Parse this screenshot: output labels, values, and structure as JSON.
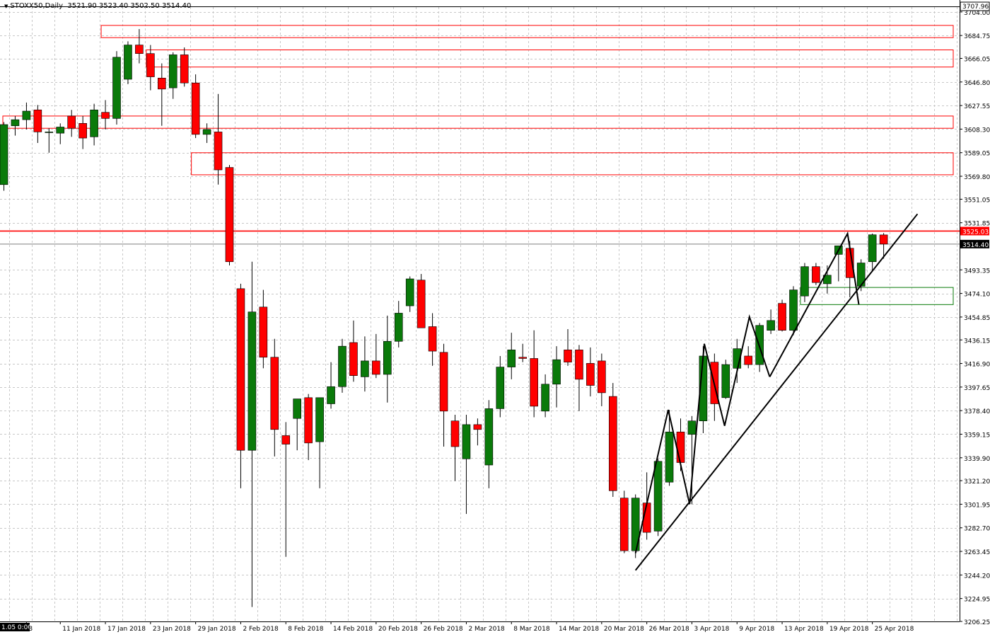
{
  "header": {
    "symbol": "STOXX50,Daily",
    "ohlc": "3521.90 3523.40 3502.50 3514.40",
    "dropdown_icon": "triangle-down-icon"
  },
  "colors": {
    "background": "#ffffff",
    "grid": "#c8c8c8",
    "bull": "#0a7a0a",
    "bear": "#ff0000",
    "wick": "#000000",
    "resistance_zone": "#ff0000",
    "support_zone": "#0a7a0a",
    "trendline": "#000000",
    "price_line": "#ff0000",
    "current_label_bg": "#000000"
  },
  "chart_data": {
    "type": "candlestick",
    "title": "STOXX50,Daily",
    "ylim": [
      3206.25,
      3707.96
    ],
    "yticks": [
      "3704.00",
      "3684.75",
      "3666.05",
      "3646.80",
      "3627.55",
      "3608.30",
      "3589.05",
      "3569.80",
      "3551.05",
      "3531.85",
      "3493.35",
      "3474.10",
      "3454.85",
      "3436.15",
      "3416.90",
      "3397.65",
      "3378.40",
      "3359.15",
      "3339.90",
      "3321.20",
      "3301.95",
      "3282.70",
      "3263.45",
      "3244.20",
      "3224.95",
      "3206.25"
    ],
    "top_label": "3707.96",
    "x_axis_labels": [
      {
        "text": "1.05 0:00",
        "index": 0,
        "highlight": true
      },
      {
        "text": "8",
        "index": 2
      },
      {
        "text": "11 Jan 2018",
        "index": 5
      },
      {
        "text": "17 Jan 2018",
        "index": 9
      },
      {
        "text": "23 Jan 2018",
        "index": 13
      },
      {
        "text": "29 Jan 2018",
        "index": 17
      },
      {
        "text": "2 Feb 2018",
        "index": 21
      },
      {
        "text": "8 Feb 2018",
        "index": 25
      },
      {
        "text": "14 Feb 2018",
        "index": 29
      },
      {
        "text": "20 Feb 2018",
        "index": 33
      },
      {
        "text": "26 Feb 2018",
        "index": 37
      },
      {
        "text": "2 Mar 2018",
        "index": 41
      },
      {
        "text": "8 Mar 2018",
        "index": 45
      },
      {
        "text": "14 Mar 2018",
        "index": 49
      },
      {
        "text": "20 Mar 2018",
        "index": 53
      },
      {
        "text": "26 Mar 2018",
        "index": 57
      },
      {
        "text": "3 Apr 2018",
        "index": 61
      },
      {
        "text": "9 Apr 2018",
        "index": 65
      },
      {
        "text": "13 Apr 2018",
        "index": 69
      },
      {
        "text": "19 Apr 2018",
        "index": 73
      },
      {
        "text": "25 Apr 2018",
        "index": 77
      }
    ],
    "candles": [
      {
        "o": 3563,
        "h": 3614,
        "l": 3558,
        "c": 3612
      },
      {
        "o": 3611,
        "h": 3619,
        "l": 3603,
        "c": 3616
      },
      {
        "o": 3616,
        "h": 3630,
        "l": 3608,
        "c": 3623
      },
      {
        "o": 3624,
        "h": 3628,
        "l": 3597,
        "c": 3606
      },
      {
        "o": 3606,
        "h": 3609,
        "l": 3589,
        "c": 3606
      },
      {
        "o": 3605,
        "h": 3613,
        "l": 3596,
        "c": 3610
      },
      {
        "o": 3619,
        "h": 3624,
        "l": 3602,
        "c": 3609
      },
      {
        "o": 3613,
        "h": 3619,
        "l": 3592,
        "c": 3601
      },
      {
        "o": 3602,
        "h": 3629,
        "l": 3595,
        "c": 3624
      },
      {
        "o": 3622,
        "h": 3632,
        "l": 3608,
        "c": 3617
      },
      {
        "o": 3617,
        "h": 3672,
        "l": 3612,
        "c": 3667
      },
      {
        "o": 3649,
        "h": 3680,
        "l": 3645,
        "c": 3677
      },
      {
        "o": 3677,
        "h": 3690,
        "l": 3662,
        "c": 3670
      },
      {
        "o": 3670,
        "h": 3677,
        "l": 3640,
        "c": 3651
      },
      {
        "o": 3650,
        "h": 3662,
        "l": 3611,
        "c": 3641
      },
      {
        "o": 3642,
        "h": 3671,
        "l": 3633,
        "c": 3669
      },
      {
        "o": 3669,
        "h": 3675,
        "l": 3643,
        "c": 3646
      },
      {
        "o": 3646,
        "h": 3653,
        "l": 3601,
        "c": 3604
      },
      {
        "o": 3604,
        "h": 3613,
        "l": 3597,
        "c": 3608
      },
      {
        "o": 3606,
        "h": 3637,
        "l": 3563,
        "c": 3575
      },
      {
        "o": 3577,
        "h": 3579,
        "l": 3497,
        "c": 3500
      },
      {
        "o": 3478,
        "h": 3482,
        "l": 3315,
        "c": 3346
      },
      {
        "o": 3346,
        "h": 3500,
        "l": 3218,
        "c": 3459
      },
      {
        "o": 3463,
        "h": 3477,
        "l": 3413,
        "c": 3422
      },
      {
        "o": 3422,
        "h": 3437,
        "l": 3341,
        "c": 3363
      },
      {
        "o": 3358,
        "h": 3369,
        "l": 3259,
        "c": 3351
      },
      {
        "o": 3372,
        "h": 3388,
        "l": 3346,
        "c": 3388
      },
      {
        "o": 3389,
        "h": 3392,
        "l": 3338,
        "c": 3352
      },
      {
        "o": 3353,
        "h": 3389,
        "l": 3315,
        "c": 3389
      },
      {
        "o": 3384,
        "h": 3418,
        "l": 3380,
        "c": 3398
      },
      {
        "o": 3398,
        "h": 3437,
        "l": 3393,
        "c": 3431
      },
      {
        "o": 3434,
        "h": 3452,
        "l": 3402,
        "c": 3407
      },
      {
        "o": 3406,
        "h": 3439,
        "l": 3394,
        "c": 3419
      },
      {
        "o": 3419,
        "h": 3441,
        "l": 3405,
        "c": 3408
      },
      {
        "o": 3408,
        "h": 3456,
        "l": 3385,
        "c": 3435
      },
      {
        "o": 3435,
        "h": 3468,
        "l": 3430,
        "c": 3458
      },
      {
        "o": 3464,
        "h": 3488,
        "l": 3459,
        "c": 3486
      },
      {
        "o": 3485,
        "h": 3490,
        "l": 3446,
        "c": 3446
      },
      {
        "o": 3447,
        "h": 3458,
        "l": 3415,
        "c": 3427
      },
      {
        "o": 3426,
        "h": 3433,
        "l": 3349,
        "c": 3378
      },
      {
        "o": 3370,
        "h": 3375,
        "l": 3321,
        "c": 3349
      },
      {
        "o": 3339,
        "h": 3375,
        "l": 3294,
        "c": 3367
      },
      {
        "o": 3367,
        "h": 3372,
        "l": 3350,
        "c": 3363
      },
      {
        "o": 3334,
        "h": 3387,
        "l": 3315,
        "c": 3380
      },
      {
        "o": 3380,
        "h": 3423,
        "l": 3373,
        "c": 3414
      },
      {
        "o": 3414,
        "h": 3442,
        "l": 3404,
        "c": 3428
      },
      {
        "o": 3422,
        "h": 3433,
        "l": 3418,
        "c": 3421
      },
      {
        "o": 3421,
        "h": 3444,
        "l": 3373,
        "c": 3382
      },
      {
        "o": 3378,
        "h": 3408,
        "l": 3373,
        "c": 3400
      },
      {
        "o": 3400,
        "h": 3431,
        "l": 3381,
        "c": 3420
      },
      {
        "o": 3428,
        "h": 3445,
        "l": 3415,
        "c": 3418
      },
      {
        "o": 3428,
        "h": 3432,
        "l": 3378,
        "c": 3404
      },
      {
        "o": 3417,
        "h": 3430,
        "l": 3390,
        "c": 3399
      },
      {
        "o": 3419,
        "h": 3425,
        "l": 3382,
        "c": 3393
      },
      {
        "o": 3390,
        "h": 3401,
        "l": 3308,
        "c": 3313
      },
      {
        "o": 3307,
        "h": 3313,
        "l": 3262,
        "c": 3264
      },
      {
        "o": 3264,
        "h": 3310,
        "l": 3258,
        "c": 3307
      },
      {
        "o": 3303,
        "h": 3328,
        "l": 3273,
        "c": 3279
      },
      {
        "o": 3280,
        "h": 3339,
        "l": 3276,
        "c": 3337
      },
      {
        "o": 3320,
        "h": 3379,
        "l": 3317,
        "c": 3361
      },
      {
        "o": 3361,
        "h": 3372,
        "l": 3329,
        "c": 3336
      },
      {
        "o": 3359,
        "h": 3374,
        "l": 3302,
        "c": 3370
      },
      {
        "o": 3370,
        "h": 3431,
        "l": 3360,
        "c": 3423
      },
      {
        "o": 3418,
        "h": 3425,
        "l": 3370,
        "c": 3384
      },
      {
        "o": 3389,
        "h": 3420,
        "l": 3388,
        "c": 3416
      },
      {
        "o": 3413,
        "h": 3437,
        "l": 3401,
        "c": 3429
      },
      {
        "o": 3423,
        "h": 3431,
        "l": 3413,
        "c": 3416
      },
      {
        "o": 3416,
        "h": 3450,
        "l": 3410,
        "c": 3448
      },
      {
        "o": 3444,
        "h": 3461,
        "l": 3441,
        "c": 3452
      },
      {
        "o": 3466,
        "h": 3469,
        "l": 3443,
        "c": 3444
      },
      {
        "o": 3444,
        "h": 3480,
        "l": 3440,
        "c": 3477
      },
      {
        "o": 3472,
        "h": 3499,
        "l": 3467,
        "c": 3496
      },
      {
        "o": 3496,
        "h": 3499,
        "l": 3481,
        "c": 3483
      },
      {
        "o": 3482,
        "h": 3497,
        "l": 3474,
        "c": 3489
      },
      {
        "o": 3506,
        "h": 3512,
        "l": 3484,
        "c": 3513
      },
      {
        "o": 3511,
        "h": 3517,
        "l": 3471,
        "c": 3487
      },
      {
        "o": 3480,
        "h": 3502,
        "l": 3476,
        "c": 3499
      },
      {
        "o": 3500,
        "h": 3523,
        "l": 3492,
        "c": 3522
      },
      {
        "o": 3521.9,
        "h": 3523.4,
        "l": 3502.5,
        "c": 3514.4
      }
    ],
    "resistance_zones": [
      {
        "from_index": 9,
        "y_top": 3693,
        "y_bottom": 3683
      },
      {
        "from_index": 13,
        "y_top": 3673,
        "y_bottom": 3659
      },
      {
        "from_index": 0,
        "y_top": 3619,
        "y_bottom": 3609
      },
      {
        "from_index": 17,
        "y_top": 3589,
        "y_bottom": 3571
      }
    ],
    "support_zone": {
      "from_index": 71,
      "y_top": 3479,
      "y_bottom": 3465
    },
    "trendlines": [
      {
        "points": [
          {
            "i": 56,
            "v": 3248
          },
          {
            "i": 81,
            "v": 3539
          }
        ]
      },
      {
        "points": [
          {
            "i": 56,
            "v": 3262
          },
          {
            "i": 58.9,
            "v": 3379
          },
          {
            "i": 60.8,
            "v": 3302
          },
          {
            "i": 62.1,
            "v": 3433
          },
          {
            "i": 63.9,
            "v": 3366
          },
          {
            "i": 66.1,
            "v": 3455
          },
          {
            "i": 67.9,
            "v": 3406
          }
        ]
      },
      {
        "points": [
          {
            "i": 67.9,
            "v": 3406
          },
          {
            "i": 74.8,
            "v": 3523
          },
          {
            "i": 75.8,
            "v": 3465
          }
        ]
      }
    ],
    "horizontal_lines": [
      {
        "value": 3525.03,
        "label": "3525.03",
        "color": "#ff0000"
      }
    ],
    "current_price": {
      "value": 3514.4,
      "label": "3514.40"
    },
    "grid": true
  }
}
